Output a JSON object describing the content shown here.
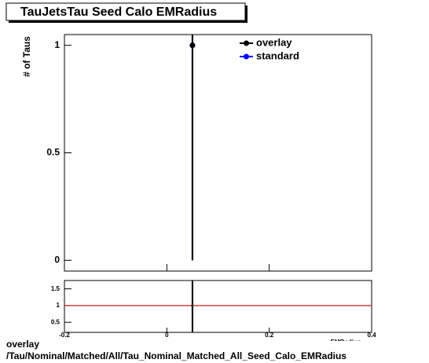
{
  "title": "TauJetsTau Seed Calo EMRadius",
  "chart_data": [
    {
      "type": "errorbar",
      "y_label": "# of Taus",
      "legend": "top-right",
      "xlim": [
        -0.2,
        0.4
      ],
      "ylim": [
        -0.05,
        1.05
      ],
      "yticks": [
        0,
        0.5,
        1
      ],
      "series": [
        {
          "name": "standard",
          "color": "#0000ff",
          "x": [
            0.05
          ],
          "values": [
            1
          ],
          "errors": [
            1
          ]
        },
        {
          "name": "overlay",
          "color": "#000000",
          "x": [
            0.05
          ],
          "values": [
            1
          ],
          "errors": [
            1
          ]
        }
      ]
    },
    {
      "type": "ratio",
      "x_label": "EMRadius",
      "xlim": [
        -0.2,
        0.4
      ],
      "xticks": [
        -0.2,
        0,
        0.2,
        0.4
      ],
      "ylim": [
        0.2,
        1.75
      ],
      "yticks": [
        0.5,
        1,
        1.5
      ],
      "reference": 1,
      "reference_color": "#cc0000",
      "x": [
        0.05
      ],
      "values": [
        1
      ],
      "errors": [
        1
      ],
      "color": "#000000"
    }
  ],
  "footer": {
    "line1": "overlay",
    "line2": "/Tau/Nominal/Matched/All/Tau_Nominal_Matched_All_Seed_Calo_EMRadius"
  }
}
